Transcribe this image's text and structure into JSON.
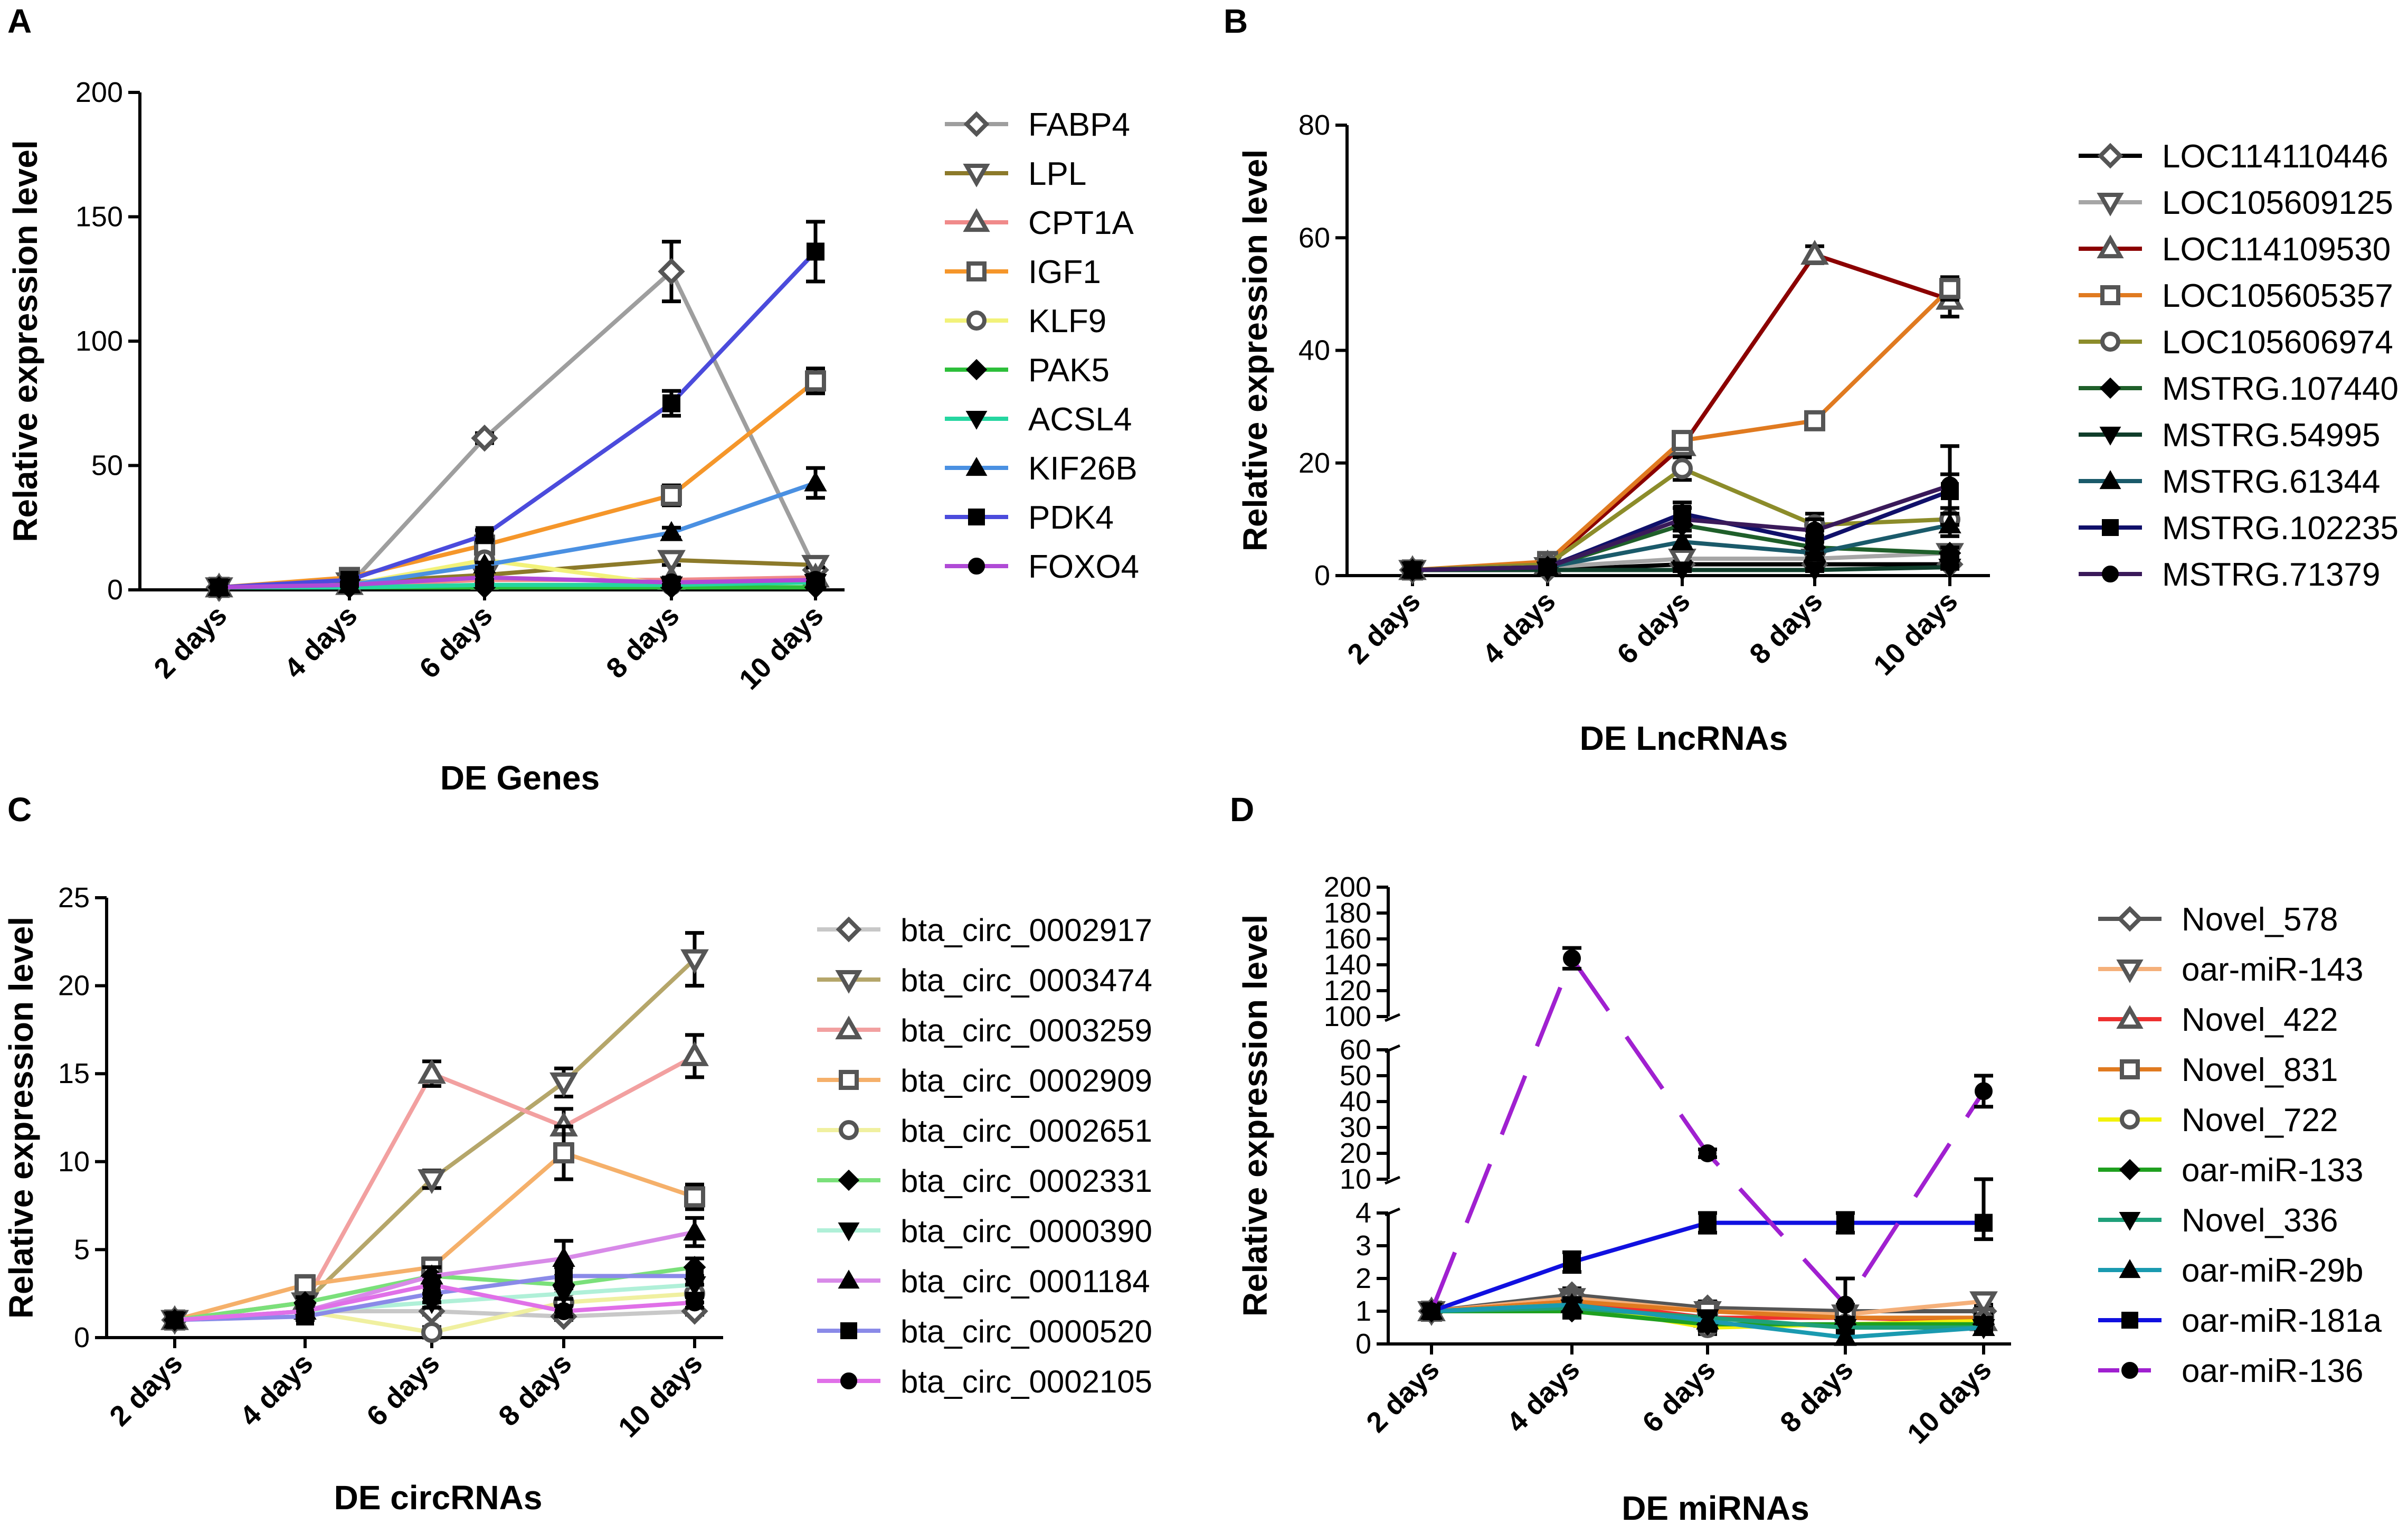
{
  "chart_data": [
    {
      "id": "A",
      "type": "line",
      "panel_label": "A",
      "xlabel": "DE Genes",
      "ylabel": "Relative expression level",
      "categories": [
        "2 days",
        "4 days",
        "6 days",
        "8 days",
        "10 days"
      ],
      "ylim": [
        0,
        200
      ],
      "yticks": [
        0,
        50,
        100,
        150,
        200
      ],
      "series": [
        {
          "name": "FABP4",
          "color": "#9e9e9e",
          "marker": "diamond-open",
          "values": [
            1,
            2,
            61,
            128,
            8
          ],
          "errors": [
            0,
            0.5,
            2,
            12,
            1
          ]
        },
        {
          "name": "LPL",
          "color": "#8c7a2a",
          "marker": "tri-down-open",
          "values": [
            1,
            3,
            6,
            12,
            10
          ],
          "errors": [
            0,
            0.5,
            1,
            2,
            1
          ]
        },
        {
          "name": "CPT1A",
          "color": "#f08a8a",
          "marker": "tri-up-open",
          "values": [
            1,
            2,
            4,
            4,
            5
          ],
          "errors": [
            0,
            0.5,
            1,
            1,
            1
          ]
        },
        {
          "name": "IGF1",
          "color": "#f5962a",
          "marker": "square-open",
          "values": [
            1,
            5,
            18,
            38,
            84
          ],
          "errors": [
            0,
            1,
            2,
            4,
            5
          ]
        },
        {
          "name": "KLF9",
          "color": "#f2f27a",
          "marker": "circle-open",
          "values": [
            1,
            2,
            12,
            2,
            3
          ],
          "errors": [
            0,
            0.5,
            1,
            1,
            1
          ]
        },
        {
          "name": "PAK5",
          "color": "#2dbf3a",
          "marker": "diamond",
          "values": [
            1,
            1,
            1,
            1,
            1
          ],
          "errors": [
            0,
            0,
            0,
            0,
            0
          ]
        },
        {
          "name": "ACSL4",
          "color": "#25d6a0",
          "marker": "tri-down",
          "values": [
            1,
            1,
            2,
            2,
            3
          ],
          "errors": [
            0,
            0,
            0.5,
            0.5,
            1
          ]
        },
        {
          "name": "KIF26B",
          "color": "#4a90e2",
          "marker": "tri-up",
          "values": [
            1,
            2,
            10,
            23,
            43
          ],
          "errors": [
            0,
            0.5,
            1,
            2,
            6
          ]
        },
        {
          "name": "PDK4",
          "color": "#4b4bdc",
          "marker": "square",
          "values": [
            1,
            4,
            22,
            75,
            136
          ],
          "errors": [
            0,
            1,
            2,
            5,
            12
          ]
        },
        {
          "name": "FOXO4",
          "color": "#b04ad6",
          "marker": "circle",
          "values": [
            1,
            2,
            5,
            3,
            4
          ],
          "errors": [
            0,
            0.5,
            1,
            1,
            1
          ]
        }
      ]
    },
    {
      "id": "B",
      "type": "line",
      "panel_label": "B",
      "xlabel": "DE LncRNAs",
      "ylabel": "Relative expression level",
      "categories": [
        "2 days",
        "4 days",
        "6 days",
        "8 days",
        "10 days"
      ],
      "ylim": [
        0,
        80
      ],
      "yticks": [
        0,
        20,
        40,
        60,
        80
      ],
      "series": [
        {
          "name": "LOC114110446",
          "color": "#000000",
          "marker": "diamond-open",
          "values": [
            1,
            1,
            2,
            2,
            2
          ],
          "errors": [
            0,
            0.3,
            0.3,
            0.3,
            0.3
          ]
        },
        {
          "name": "LOC105609125",
          "color": "#a6a6a6",
          "marker": "tri-down-open",
          "values": [
            1,
            1.5,
            3,
            3,
            4
          ],
          "errors": [
            0,
            0.3,
            0.5,
            0.5,
            0.5
          ]
        },
        {
          "name": "LOC114109530",
          "color": "#8b0000",
          "marker": "tri-up-open",
          "values": [
            1,
            2,
            23,
            57,
            49
          ],
          "errors": [
            0,
            0.5,
            1.5,
            1.5,
            3
          ]
        },
        {
          "name": "LOC105605357",
          "color": "#e07a20",
          "marker": "square-open",
          "values": [
            1,
            2.5,
            24,
            27.5,
            51
          ],
          "errors": [
            0,
            0.5,
            1.5,
            1.5,
            2
          ]
        },
        {
          "name": "LOC105606974",
          "color": "#8c8c2a",
          "marker": "circle-open",
          "values": [
            1,
            2,
            19,
            9,
            10
          ],
          "errors": [
            0,
            0.5,
            2,
            2,
            2
          ]
        },
        {
          "name": "MSTRG.107440",
          "color": "#1f5f2a",
          "marker": "diamond",
          "values": [
            1,
            1.5,
            9,
            5,
            4
          ],
          "errors": [
            0,
            0.3,
            1,
            1,
            1
          ]
        },
        {
          "name": "MSTRG.54995",
          "color": "#0f3d2a",
          "marker": "tri-down",
          "values": [
            1,
            1,
            1,
            1,
            1.5
          ],
          "errors": [
            0,
            0.2,
            0.2,
            0.2,
            0.3
          ]
        },
        {
          "name": "MSTRG.61344",
          "color": "#1a5a6a",
          "marker": "tri-up",
          "values": [
            1,
            1.5,
            6,
            4,
            9
          ],
          "errors": [
            0,
            0.3,
            1,
            1,
            2
          ]
        },
        {
          "name": "MSTRG.102235",
          "color": "#10106a",
          "marker": "square",
          "values": [
            1,
            1.5,
            11,
            6,
            15
          ],
          "errors": [
            0,
            0.3,
            2,
            2,
            3
          ]
        },
        {
          "name": "MSTRG.71379",
          "color": "#3a1a5a",
          "marker": "circle",
          "values": [
            1,
            1.5,
            10,
            8,
            16
          ],
          "errors": [
            0,
            0.3,
            2,
            2,
            7
          ]
        }
      ]
    },
    {
      "id": "C",
      "type": "line",
      "panel_label": "C",
      "xlabel": "DE circRNAs",
      "ylabel": "Relative expression level",
      "categories": [
        "2 days",
        "4 days",
        "6 days",
        "8 days",
        "10 days"
      ],
      "ylim": [
        0,
        25
      ],
      "yticks": [
        0,
        5,
        10,
        15,
        20,
        25
      ],
      "series": [
        {
          "name": "bta_circ_0002917",
          "color": "#c8c8c8",
          "marker": "diamond-open",
          "values": [
            1,
            1.5,
            1.5,
            1.2,
            1.5
          ],
          "errors": [
            0,
            0.2,
            0.2,
            0.2,
            0.2
          ]
        },
        {
          "name": "bta_circ_0003474",
          "color": "#b5a66a",
          "marker": "tri-down-open",
          "values": [
            1,
            2,
            9,
            14.5,
            21.5
          ],
          "errors": [
            0,
            0.3,
            0.5,
            0.8,
            1.5
          ]
        },
        {
          "name": "bta_circ_0003259",
          "color": "#f2a0a0",
          "marker": "tri-up-open",
          "values": [
            1,
            2,
            15,
            12,
            16
          ],
          "errors": [
            0,
            0.3,
            0.7,
            1,
            1.2
          ]
        },
        {
          "name": "bta_circ_0002909",
          "color": "#f5b06a",
          "marker": "square-open",
          "values": [
            1,
            3,
            4,
            10.5,
            8
          ],
          "errors": [
            0,
            0.5,
            0.5,
            1.5,
            0.7
          ]
        },
        {
          "name": "bta_circ_0002651",
          "color": "#f0f0a0",
          "marker": "circle-open",
          "values": [
            1,
            1.5,
            0.3,
            2,
            2.5
          ],
          "errors": [
            0,
            0.3,
            0.3,
            0.5,
            0.5
          ]
        },
        {
          "name": "bta_circ_0002331",
          "color": "#7ae07a",
          "marker": "diamond",
          "values": [
            1,
            2,
            3.5,
            3,
            4
          ],
          "errors": [
            0,
            0.3,
            0.5,
            0.5,
            0.5
          ]
        },
        {
          "name": "bta_circ_0000390",
          "color": "#b0f0d8",
          "marker": "tri-down",
          "values": [
            1,
            1.5,
            2,
            2.5,
            3
          ],
          "errors": [
            0,
            0.3,
            0.3,
            0.3,
            0.5
          ]
        },
        {
          "name": "bta_circ_0001184",
          "color": "#d88ae8",
          "marker": "tri-up",
          "values": [
            1,
            1.5,
            3.5,
            4.5,
            6
          ],
          "errors": [
            0,
            0.3,
            0.5,
            1,
            0.8
          ]
        },
        {
          "name": "bta_circ_0000520",
          "color": "#8a8ae8",
          "marker": "square",
          "values": [
            1,
            1.2,
            2.5,
            3.5,
            3.5
          ],
          "errors": [
            0,
            0.2,
            0.5,
            0.5,
            0.5
          ]
        },
        {
          "name": "bta_circ_0002105",
          "color": "#e070e8",
          "marker": "circle",
          "values": [
            1,
            1.5,
            3,
            1.5,
            2
          ],
          "errors": [
            0,
            0.3,
            0.5,
            0.3,
            0.3
          ]
        }
      ]
    },
    {
      "id": "D",
      "type": "line",
      "panel_label": "D",
      "xlabel": "DE miRNAs",
      "ylabel": "Relative expression level",
      "categories": [
        "2 days",
        "4 days",
        "6 days",
        "8 days",
        "10 days"
      ],
      "ylim": [
        0,
        200
      ],
      "yticks": [
        0,
        1,
        2,
        3,
        4,
        10,
        20,
        30,
        40,
        50,
        60,
        100,
        120,
        140,
        160,
        180,
        200
      ],
      "axis_breaks": [
        [
          4,
          10
        ],
        [
          60,
          100
        ]
      ],
      "series": [
        {
          "name": "Novel_578",
          "color": "#555555",
          "marker": "diamond-open",
          "values": [
            1,
            1.5,
            1.1,
            1,
            1
          ],
          "errors": [
            0,
            0.2,
            0.2,
            0.2,
            0.2
          ]
        },
        {
          "name": "oar-miR-143",
          "color": "#f5b07a",
          "marker": "tri-down-open",
          "values": [
            1,
            1.4,
            1,
            0.9,
            1.3
          ],
          "errors": [
            0,
            0.2,
            0.2,
            0.2,
            0.2
          ]
        },
        {
          "name": "Novel_422",
          "color": "#ee3030",
          "marker": "tri-up-open",
          "values": [
            1,
            1.3,
            0.8,
            0.8,
            0.7
          ],
          "errors": [
            0,
            0.2,
            0.2,
            0.2,
            0.2
          ]
        },
        {
          "name": "Novel_831",
          "color": "#e07a20",
          "marker": "square-open",
          "values": [
            1,
            1.3,
            1,
            0.8,
            0.8
          ],
          "errors": [
            0,
            0.2,
            0.2,
            0.2,
            0.2
          ]
        },
        {
          "name": "Novel_722",
          "color": "#f2f20a",
          "marker": "circle-open",
          "values": [
            1,
            1.2,
            0.5,
            0.6,
            0.7
          ],
          "errors": [
            0,
            0.2,
            0.2,
            0.2,
            0.2
          ]
        },
        {
          "name": "oar-miR-133",
          "color": "#1fa01f",
          "marker": "diamond",
          "values": [
            1,
            1,
            0.6,
            0.6,
            0.6
          ],
          "errors": [
            0,
            0.2,
            0.2,
            0.2,
            0.2
          ]
        },
        {
          "name": "Novel_336",
          "color": "#1fa07a",
          "marker": "tri-down",
          "values": [
            1,
            1.1,
            0.8,
            0.5,
            0.5
          ],
          "errors": [
            0,
            0.2,
            0.2,
            0.2,
            0.2
          ]
        },
        {
          "name": "oar-miR-29b",
          "color": "#1a9ab0",
          "marker": "tri-up",
          "values": [
            1,
            1.2,
            0.7,
            0.2,
            0.5
          ],
          "errors": [
            0,
            0.2,
            0.2,
            0.2,
            0.2
          ]
        },
        {
          "name": "oar-miR-181a",
          "color": "#1010e0",
          "marker": "square",
          "values": [
            1,
            2.5,
            3.7,
            3.7,
            3.7
          ],
          "errors": [
            0,
            0.3,
            0.3,
            0.3,
            0.5
          ]
        },
        {
          "name": "oar-miR-136",
          "color": "#a020d0",
          "marker": "circle",
          "values": [
            1,
            145,
            20,
            1.2,
            44
          ],
          "errors": [
            0,
            8,
            1.5,
            0.8,
            6
          ]
        }
      ]
    }
  ]
}
